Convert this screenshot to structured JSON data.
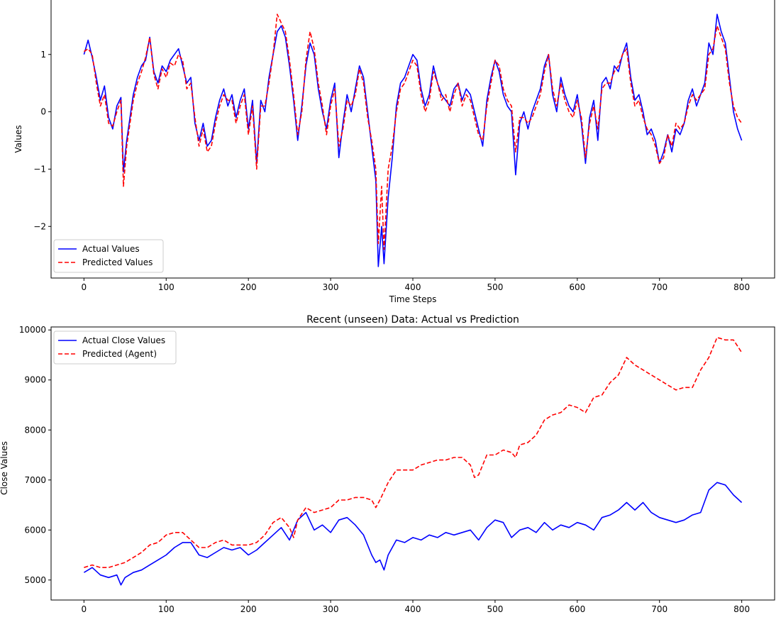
{
  "chart_data": [
    {
      "type": "line",
      "title": "",
      "xlabel": "Time Steps",
      "ylabel": "Values",
      "xlim": [
        -40,
        840
      ],
      "ylim": [
        -2.9,
        1.95
      ],
      "xticks": [
        0,
        100,
        200,
        300,
        400,
        500,
        600,
        700,
        800
      ],
      "yticks": [
        -2,
        -1,
        0,
        1
      ],
      "grid": false,
      "legend_position": "lower-left",
      "series": [
        {
          "name": "Actual Values",
          "color": "#0000ff",
          "style": "solid",
          "x": [
            0,
            5,
            10,
            15,
            20,
            25,
            30,
            35,
            40,
            45,
            48,
            52,
            55,
            60,
            65,
            70,
            75,
            80,
            85,
            90,
            95,
            100,
            105,
            110,
            115,
            120,
            125,
            130,
            135,
            140,
            145,
            150,
            155,
            160,
            165,
            170,
            175,
            180,
            185,
            190,
            195,
            200,
            205,
            210,
            215,
            220,
            225,
            230,
            235,
            240,
            245,
            250,
            255,
            260,
            265,
            270,
            275,
            280,
            285,
            290,
            295,
            300,
            305,
            310,
            315,
            320,
            325,
            330,
            335,
            340,
            345,
            350,
            355,
            358,
            362,
            365,
            370,
            375,
            380,
            385,
            390,
            395,
            400,
            405,
            410,
            415,
            420,
            425,
            430,
            435,
            440,
            445,
            450,
            455,
            460,
            465,
            470,
            475,
            480,
            485,
            490,
            495,
            500,
            505,
            510,
            515,
            520,
            525,
            530,
            535,
            540,
            545,
            550,
            555,
            560,
            565,
            570,
            575,
            580,
            585,
            590,
            595,
            600,
            605,
            610,
            615,
            620,
            625,
            630,
            635,
            640,
            645,
            650,
            655,
            660,
            665,
            670,
            675,
            680,
            685,
            690,
            695,
            700,
            705,
            710,
            715,
            720,
            725,
            730,
            735,
            740,
            745,
            750,
            755,
            760,
            765,
            770,
            775,
            780,
            785,
            790,
            795,
            800
          ],
          "y": [
            1.0,
            1.25,
            0.95,
            0.6,
            0.2,
            0.45,
            -0.1,
            -0.3,
            0.1,
            0.25,
            -1.05,
            -0.5,
            -0.2,
            0.3,
            0.6,
            0.8,
            0.9,
            1.3,
            0.7,
            0.5,
            0.8,
            0.7,
            0.9,
            1.0,
            1.1,
            0.8,
            0.5,
            0.6,
            -0.2,
            -0.5,
            -0.2,
            -0.6,
            -0.5,
            -0.1,
            0.2,
            0.4,
            0.1,
            0.3,
            -0.1,
            0.2,
            0.4,
            -0.3,
            0.2,
            -0.9,
            0.2,
            0.0,
            0.6,
            1.0,
            1.4,
            1.5,
            1.3,
            0.8,
            0.2,
            -0.5,
            0.1,
            0.8,
            1.2,
            1.0,
            0.4,
            0.0,
            -0.3,
            0.2,
            0.5,
            -0.8,
            -0.2,
            0.3,
            0.0,
            0.4,
            0.8,
            0.6,
            0.0,
            -0.6,
            -1.2,
            -2.7,
            -2.0,
            -2.65,
            -1.5,
            -0.8,
            0.1,
            0.5,
            0.6,
            0.8,
            1.0,
            0.9,
            0.4,
            0.1,
            0.3,
            0.8,
            0.5,
            0.3,
            0.2,
            0.1,
            0.4,
            0.5,
            0.2,
            0.4,
            0.3,
            0.0,
            -0.3,
            -0.6,
            0.2,
            0.6,
            0.9,
            0.7,
            0.3,
            0.1,
            0.0,
            -1.1,
            -0.2,
            0.0,
            -0.3,
            0.0,
            0.2,
            0.4,
            0.8,
            1.0,
            0.3,
            0.0,
            0.6,
            0.3,
            0.1,
            0.0,
            0.3,
            -0.2,
            -0.9,
            -0.1,
            0.2,
            -0.5,
            0.5,
            0.6,
            0.4,
            0.8,
            0.7,
            1.0,
            1.2,
            0.6,
            0.2,
            0.3,
            0.0,
            -0.4,
            -0.3,
            -0.5,
            -0.9,
            -0.7,
            -0.4,
            -0.7,
            -0.3,
            -0.4,
            -0.2,
            0.2,
            0.4,
            0.1,
            0.3,
            0.5,
            1.2,
            1.0,
            1.7,
            1.4,
            1.2,
            0.6,
            0.0,
            -0.3,
            -0.5
          ]
        },
        {
          "name": "Predicted Values",
          "color": "#ff0000",
          "style": "dashed",
          "x": [
            0,
            5,
            10,
            15,
            20,
            25,
            30,
            35,
            40,
            45,
            48,
            52,
            55,
            60,
            65,
            70,
            75,
            80,
            85,
            90,
            95,
            100,
            105,
            110,
            115,
            120,
            125,
            130,
            135,
            140,
            145,
            150,
            155,
            160,
            165,
            170,
            175,
            180,
            185,
            190,
            195,
            200,
            205,
            210,
            215,
            220,
            225,
            230,
            235,
            240,
            245,
            250,
            255,
            260,
            265,
            270,
            275,
            280,
            285,
            290,
            295,
            300,
            305,
            310,
            315,
            320,
            325,
            330,
            335,
            340,
            345,
            350,
            355,
            358,
            362,
            365,
            370,
            375,
            380,
            385,
            390,
            395,
            400,
            405,
            410,
            415,
            420,
            425,
            430,
            435,
            440,
            445,
            450,
            455,
            460,
            465,
            470,
            475,
            480,
            485,
            490,
            495,
            500,
            505,
            510,
            515,
            520,
            525,
            530,
            535,
            540,
            545,
            550,
            555,
            560,
            565,
            570,
            575,
            580,
            585,
            590,
            595,
            600,
            605,
            610,
            615,
            620,
            625,
            630,
            635,
            640,
            645,
            650,
            655,
            660,
            665,
            670,
            675,
            680,
            685,
            690,
            695,
            700,
            705,
            710,
            715,
            720,
            725,
            730,
            735,
            740,
            745,
            750,
            755,
            760,
            765,
            770,
            775,
            780,
            785,
            790,
            795,
            800
          ],
          "y": [
            1.05,
            1.1,
            1.0,
            0.5,
            0.1,
            0.3,
            -0.2,
            -0.25,
            0.0,
            0.2,
            -1.3,
            -0.6,
            -0.3,
            0.2,
            0.5,
            0.7,
            0.95,
            1.3,
            0.65,
            0.4,
            0.75,
            0.6,
            0.85,
            0.8,
            1.0,
            0.9,
            0.4,
            0.5,
            -0.1,
            -0.6,
            -0.3,
            -0.7,
            -0.6,
            -0.2,
            0.1,
            0.3,
            0.2,
            0.2,
            -0.2,
            0.1,
            0.3,
            -0.4,
            0.1,
            -1.0,
            0.1,
            0.1,
            0.5,
            1.0,
            1.7,
            1.55,
            1.4,
            0.9,
            0.3,
            -0.4,
            0.0,
            0.9,
            1.4,
            1.1,
            0.5,
            0.1,
            -0.4,
            0.1,
            0.4,
            -0.6,
            -0.3,
            0.2,
            0.1,
            0.3,
            0.75,
            0.5,
            -0.1,
            -0.5,
            -1.0,
            -2.3,
            -1.3,
            -2.4,
            -1.0,
            -0.6,
            0.0,
            0.4,
            0.5,
            0.7,
            0.9,
            0.8,
            0.3,
            0.0,
            0.2,
            0.7,
            0.5,
            0.2,
            0.3,
            0.0,
            0.3,
            0.5,
            0.1,
            0.3,
            0.2,
            -0.1,
            -0.4,
            -0.5,
            0.1,
            0.5,
            0.9,
            0.8,
            0.4,
            0.2,
            0.1,
            -0.7,
            -0.1,
            -0.1,
            -0.2,
            -0.1,
            0.1,
            0.3,
            0.7,
            1.0,
            0.4,
            0.1,
            0.5,
            0.2,
            0.0,
            -0.1,
            0.2,
            -0.1,
            -0.8,
            -0.2,
            0.1,
            -0.3,
            0.4,
            0.5,
            0.5,
            0.7,
            0.8,
            1.0,
            1.1,
            0.5,
            0.1,
            0.2,
            -0.1,
            -0.3,
            -0.4,
            -0.6,
            -0.9,
            -0.8,
            -0.4,
            -0.6,
            -0.2,
            -0.3,
            -0.2,
            0.1,
            0.3,
            0.2,
            0.3,
            0.4,
            1.0,
            1.1,
            1.5,
            1.3,
            1.1,
            0.5,
            0.1,
            -0.1,
            -0.2
          ]
        }
      ]
    },
    {
      "type": "line",
      "title": "Recent (unseen) Data: Actual vs Prediction",
      "xlabel": "",
      "ylabel": "Close Values",
      "xlim": [
        -40,
        840
      ],
      "ylim": [
        4600,
        10060
      ],
      "xticks": [
        0,
        100,
        200,
        300,
        400,
        500,
        600,
        700,
        800
      ],
      "yticks": [
        5000,
        6000,
        7000,
        8000,
        9000,
        10000
      ],
      "grid": false,
      "legend_position": "upper-left",
      "series": [
        {
          "name": "Actual Close Values",
          "color": "#0000ff",
          "style": "solid",
          "x": [
            0,
            10,
            20,
            30,
            40,
            45,
            50,
            60,
            70,
            80,
            90,
            100,
            110,
            120,
            130,
            140,
            150,
            160,
            170,
            180,
            190,
            200,
            210,
            220,
            230,
            240,
            250,
            260,
            270,
            280,
            290,
            300,
            310,
            320,
            330,
            340,
            350,
            355,
            360,
            365,
            370,
            380,
            390,
            400,
            410,
            420,
            430,
            440,
            450,
            460,
            470,
            480,
            490,
            500,
            510,
            520,
            530,
            540,
            550,
            560,
            570,
            580,
            590,
            600,
            610,
            620,
            630,
            640,
            650,
            660,
            670,
            680,
            690,
            700,
            710,
            720,
            730,
            740,
            750,
            760,
            770,
            780,
            790,
            800
          ],
          "y": [
            5150,
            5250,
            5100,
            5050,
            5100,
            4900,
            5050,
            5150,
            5200,
            5300,
            5400,
            5500,
            5650,
            5750,
            5750,
            5500,
            5450,
            5550,
            5650,
            5600,
            5650,
            5500,
            5600,
            5750,
            5900,
            6050,
            5800,
            6200,
            6350,
            6000,
            6100,
            5950,
            6200,
            6250,
            6100,
            5900,
            5500,
            5350,
            5400,
            5200,
            5500,
            5800,
            5750,
            5850,
            5800,
            5900,
            5850,
            5950,
            5900,
            5950,
            6000,
            5800,
            6050,
            6200,
            6150,
            5850,
            6000,
            6050,
            5950,
            6150,
            6000,
            6100,
            6050,
            6150,
            6100,
            6000,
            6250,
            6300,
            6400,
            6550,
            6400,
            6550,
            6350,
            6250,
            6200,
            6150,
            6200,
            6300,
            6350,
            6800,
            6950,
            6900,
            6700,
            6550
          ]
        },
        {
          "name": "Predicted (Agent)",
          "color": "#ff0000",
          "style": "dashed",
          "x": [
            0,
            10,
            20,
            30,
            40,
            50,
            60,
            70,
            80,
            90,
            100,
            110,
            120,
            130,
            140,
            150,
            160,
            170,
            180,
            190,
            200,
            210,
            220,
            230,
            240,
            250,
            255,
            260,
            270,
            280,
            290,
            300,
            310,
            320,
            330,
            340,
            350,
            355,
            360,
            370,
            380,
            390,
            400,
            410,
            420,
            430,
            440,
            450,
            460,
            470,
            475,
            480,
            490,
            500,
            510,
            520,
            525,
            530,
            540,
            550,
            560,
            570,
            580,
            590,
            600,
            610,
            620,
            630,
            640,
            650,
            660,
            670,
            680,
            690,
            700,
            710,
            720,
            730,
            740,
            750,
            760,
            770,
            780,
            790,
            800
          ],
          "y": [
            5250,
            5300,
            5250,
            5250,
            5300,
            5350,
            5450,
            5550,
            5700,
            5750,
            5900,
            5950,
            5950,
            5800,
            5650,
            5650,
            5750,
            5800,
            5700,
            5700,
            5700,
            5750,
            5900,
            6150,
            6250,
            6050,
            5850,
            6200,
            6450,
            6350,
            6400,
            6450,
            6600,
            6600,
            6650,
            6650,
            6600,
            6450,
            6600,
            6950,
            7200,
            7200,
            7200,
            7300,
            7350,
            7400,
            7400,
            7450,
            7450,
            7300,
            7050,
            7100,
            7500,
            7500,
            7600,
            7550,
            7450,
            7700,
            7750,
            7900,
            8200,
            8300,
            8350,
            8500,
            8450,
            8350,
            8650,
            8700,
            8950,
            9100,
            9450,
            9300,
            9200,
            9100,
            9000,
            8900,
            8800,
            8850,
            8850,
            9200,
            9450,
            9850,
            9800,
            9800,
            9550
          ]
        }
      ]
    }
  ]
}
